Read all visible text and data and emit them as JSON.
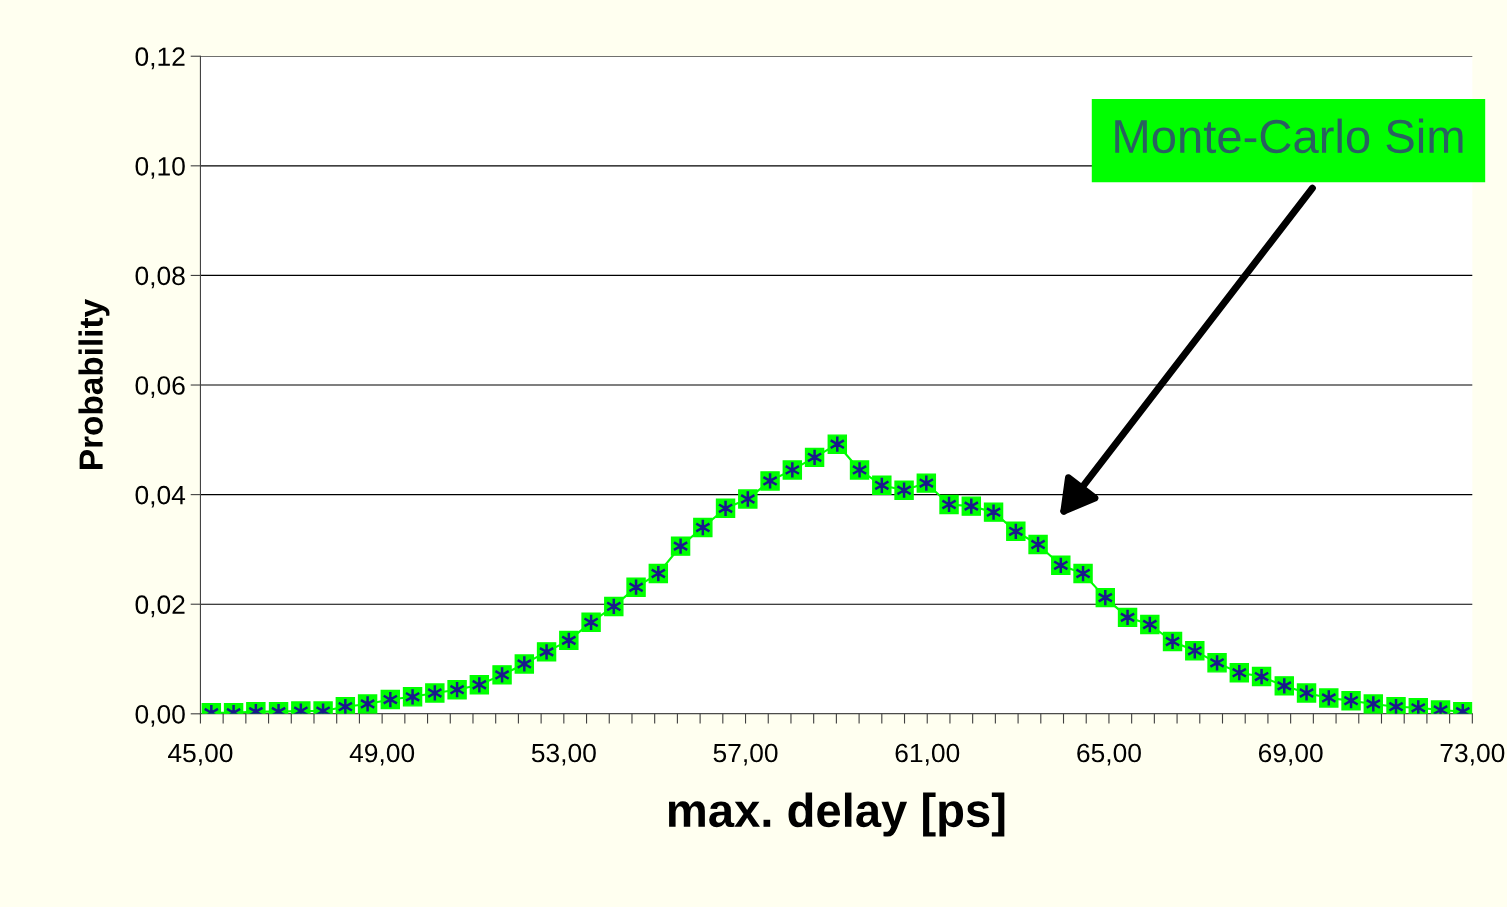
{
  "chart_data": {
    "type": "line",
    "xlabel": "max. delay [ps]",
    "ylabel": "Probability",
    "x": [
      45.24,
      45.73,
      46.22,
      46.72,
      47.21,
      47.7,
      48.19,
      48.68,
      49.18,
      49.67,
      50.16,
      50.65,
      51.14,
      51.64,
      52.13,
      52.62,
      53.11,
      53.6,
      54.1,
      54.59,
      55.08,
      55.57,
      56.06,
      56.56,
      57.05,
      57.54,
      58.03,
      58.52,
      59.02,
      59.51,
      60.0,
      60.49,
      60.98,
      61.48,
      61.97,
      62.46,
      62.95,
      63.44,
      63.94,
      64.43,
      64.92,
      65.41,
      65.9,
      66.4,
      66.89,
      67.38,
      67.87,
      68.36,
      68.86,
      69.35,
      69.84,
      70.33,
      70.82,
      71.32,
      71.81,
      72.3,
      72.79
    ],
    "series": [
      {
        "color": "#00ff00",
        "values": [
          0.0002,
          0.0002,
          0.0004,
          0.0004,
          0.0005,
          0.0005,
          0.0013,
          0.0018,
          0.0026,
          0.0031,
          0.0038,
          0.0044,
          0.0053,
          0.0071,
          0.0091,
          0.0113,
          0.0134,
          0.0167,
          0.0196,
          0.0231,
          0.0256,
          0.0306,
          0.034,
          0.0375,
          0.0392,
          0.0425,
          0.0445,
          0.0468,
          0.0492,
          0.0445,
          0.0417,
          0.0408,
          0.0421,
          0.0382,
          0.0379,
          0.0368,
          0.0333,
          0.0309,
          0.0271,
          0.0256,
          0.0212,
          0.0176,
          0.0163,
          0.0132,
          0.0115,
          0.0093,
          0.0075,
          0.0068,
          0.0051,
          0.0038,
          0.0029,
          0.0024,
          0.0018,
          0.0013,
          0.0011,
          0.0007,
          0.0004
        ]
      }
    ],
    "marker": "square",
    "line_style": "solid",
    "grid": "y",
    "xlim": [
      45,
      73
    ],
    "ylim": [
      0,
      0.12
    ],
    "xticks": [
      {
        "value": 45,
        "label": "45,00"
      },
      {
        "value": 45.5,
        "label": null
      },
      {
        "value": 46,
        "label": null
      },
      {
        "value": 46.5,
        "label": null
      },
      {
        "value": 47,
        "label": null
      },
      {
        "value": 47.5,
        "label": null
      },
      {
        "value": 48,
        "label": null
      },
      {
        "value": 48.5,
        "label": null
      },
      {
        "value": 49,
        "label": "49,00"
      },
      {
        "value": 49.5,
        "label": null
      },
      {
        "value": 50,
        "label": null
      },
      {
        "value": 50.5,
        "label": null
      },
      {
        "value": 51,
        "label": null
      },
      {
        "value": 51.5,
        "label": null
      },
      {
        "value": 52,
        "label": null
      },
      {
        "value": 52.5,
        "label": null
      },
      {
        "value": 53,
        "label": "53,00"
      },
      {
        "value": 53.5,
        "label": null
      },
      {
        "value": 54,
        "label": null
      },
      {
        "value": 54.5,
        "label": null
      },
      {
        "value": 55,
        "label": null
      },
      {
        "value": 55.5,
        "label": null
      },
      {
        "value": 56,
        "label": null
      },
      {
        "value": 56.5,
        "label": null
      },
      {
        "value": 57,
        "label": "57,00"
      },
      {
        "value": 57.5,
        "label": null
      },
      {
        "value": 58,
        "label": null
      },
      {
        "value": 58.5,
        "label": null
      },
      {
        "value": 59,
        "label": null
      },
      {
        "value": 59.5,
        "label": null
      },
      {
        "value": 60,
        "label": null
      },
      {
        "value": 60.5,
        "label": null
      },
      {
        "value": 61,
        "label": "61,00"
      },
      {
        "value": 61.5,
        "label": null
      },
      {
        "value": 62,
        "label": null
      },
      {
        "value": 62.5,
        "label": null
      },
      {
        "value": 63,
        "label": null
      },
      {
        "value": 63.5,
        "label": null
      },
      {
        "value": 64,
        "label": null
      },
      {
        "value": 64.5,
        "label": null
      },
      {
        "value": 65,
        "label": "65,00"
      },
      {
        "value": 65.5,
        "label": null
      },
      {
        "value": 66,
        "label": null
      },
      {
        "value": 66.5,
        "label": null
      },
      {
        "value": 67,
        "label": null
      },
      {
        "value": 67.5,
        "label": null
      },
      {
        "value": 68,
        "label": null
      },
      {
        "value": 68.5,
        "label": null
      },
      {
        "value": 69,
        "label": "69,00"
      },
      {
        "value": 69.5,
        "label": null
      },
      {
        "value": 70,
        "label": null
      },
      {
        "value": 70.5,
        "label": null
      },
      {
        "value": 71,
        "label": null
      },
      {
        "value": 71.5,
        "label": null
      },
      {
        "value": 72,
        "label": null
      },
      {
        "value": 72.5,
        "label": null
      },
      {
        "value": 73,
        "label": "73,00"
      }
    ],
    "yticks": [
      {
        "value": 0,
        "label": "0,00"
      },
      {
        "value": 0.02,
        "label": "0,02"
      },
      {
        "value": 0.04,
        "label": "0,04"
      },
      {
        "value": 0.06,
        "label": "0,06"
      },
      {
        "value": 0.08,
        "label": "0,08"
      },
      {
        "value": 0.1,
        "label": "0,10"
      },
      {
        "value": 0.12,
        "label": "0,12"
      }
    ],
    "annotations": [
      "Monte-Carlo Sim"
    ]
  }
}
